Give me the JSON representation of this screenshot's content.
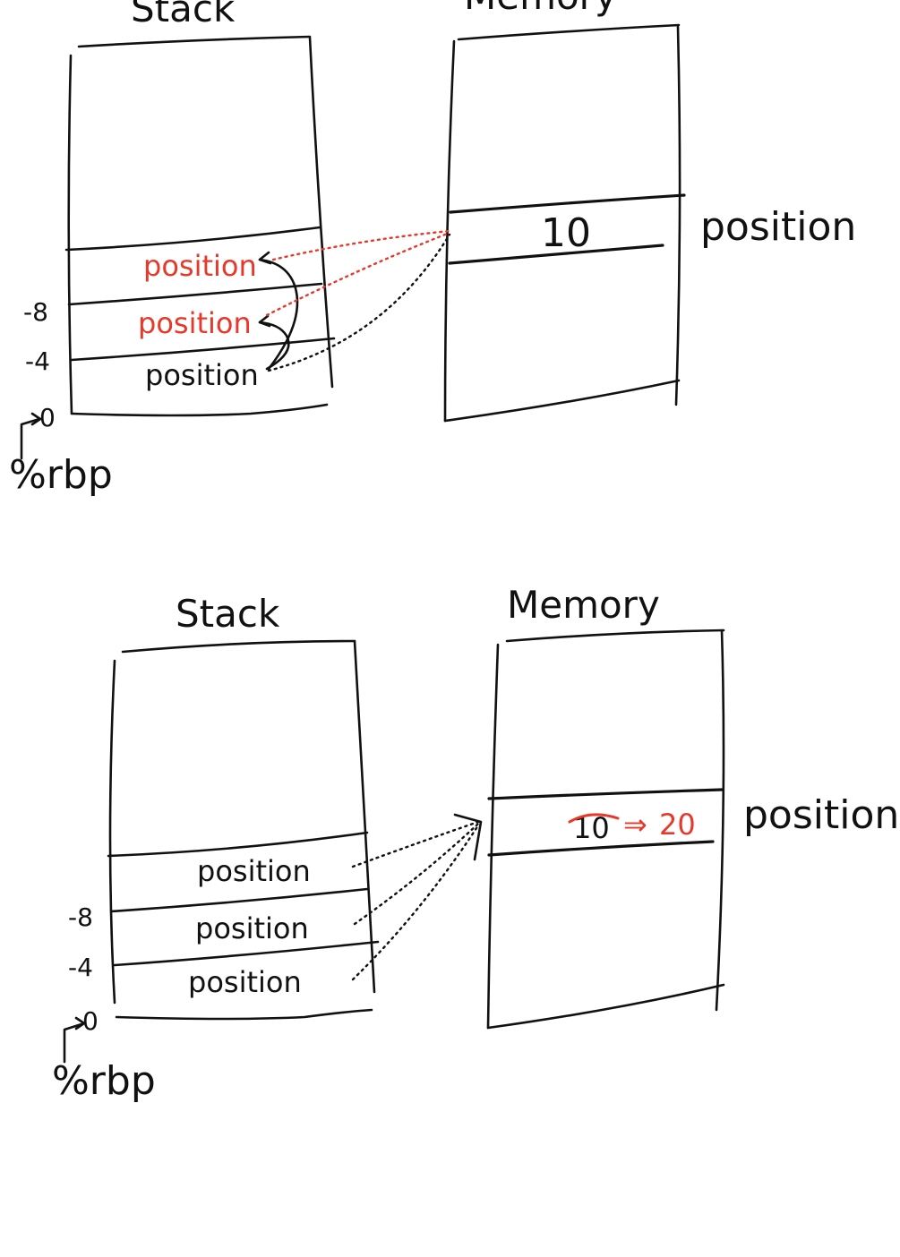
{
  "panel_before": {
    "stack_title": "Stack",
    "memory_title": "Memory",
    "slots": [
      {
        "label": "position",
        "color": "#e8382a"
      },
      {
        "label": "position",
        "color": "#e8382a"
      },
      {
        "label": "position",
        "color": "#111111"
      }
    ],
    "offsets": [
      "-8",
      "-4",
      "0"
    ],
    "base_pointer": "%rbp",
    "memory_cell_value": "10",
    "memory_cell_label": "position"
  },
  "panel_after": {
    "stack_title": "Stack",
    "memory_title": "Memory",
    "slots": [
      {
        "label": "position"
      },
      {
        "label": "position"
      },
      {
        "label": "position"
      }
    ],
    "offsets": [
      "-8",
      "-4",
      "0"
    ],
    "base_pointer": "%rbp",
    "memory_old_value": "10",
    "memory_arrow": "⇒",
    "memory_new_value": "20",
    "memory_cell_label": "position"
  },
  "colors": {
    "ink": "#111111",
    "highlight": "#e8382a"
  }
}
